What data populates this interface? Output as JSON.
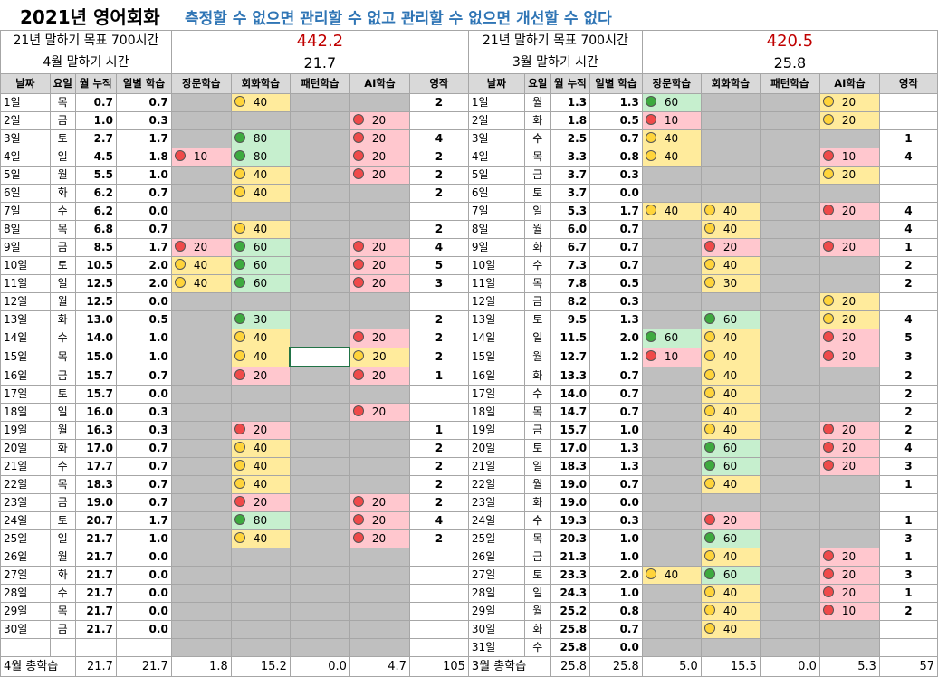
{
  "title": "2021년 영어회화",
  "subtitle": "측정할 수 없으면 관리할 수 없고 관리할 수 없으면 개선할 수 없다",
  "left": {
    "goal_label": "21년 말하기 목표 700시간",
    "goal_value": "442.2",
    "month_label": "4월 말하기 시간",
    "month_value": "21.7",
    "headers": [
      "날짜",
      "요일",
      "월 누적",
      "일별 학습",
      "장문학습",
      "회화학습",
      "패턴학습",
      "AI학습",
      "영작"
    ],
    "rows": [
      [
        "1일",
        "목",
        "0.7",
        "0.7",
        "",
        "y40",
        "",
        "",
        "2"
      ],
      [
        "2일",
        "금",
        "1.0",
        "0.3",
        "",
        "",
        "",
        "r20",
        ""
      ],
      [
        "3일",
        "토",
        "2.7",
        "1.7",
        "",
        "g80",
        "",
        "r20",
        "4"
      ],
      [
        "4일",
        "일",
        "4.5",
        "1.8",
        "r10",
        "g80",
        "",
        "r20",
        "2"
      ],
      [
        "5일",
        "월",
        "5.5",
        "1.0",
        "",
        "y40",
        "",
        "r20",
        "2"
      ],
      [
        "6일",
        "화",
        "6.2",
        "0.7",
        "",
        "y40",
        "",
        "",
        "2"
      ],
      [
        "7일",
        "수",
        "6.2",
        "0.0",
        "",
        "",
        "",
        "",
        ""
      ],
      [
        "8일",
        "목",
        "6.8",
        "0.7",
        "",
        "y40",
        "",
        "",
        "2"
      ],
      [
        "9일",
        "금",
        "8.5",
        "1.7",
        "r20",
        "g60",
        "",
        "r20",
        "4"
      ],
      [
        "10일",
        "토",
        "10.5",
        "2.0",
        "y40",
        "g60",
        "",
        "r20",
        "5"
      ],
      [
        "11일",
        "일",
        "12.5",
        "2.0",
        "y40",
        "g60",
        "",
        "r20",
        "3"
      ],
      [
        "12일",
        "월",
        "12.5",
        "0.0",
        "",
        "",
        "",
        "",
        ""
      ],
      [
        "13일",
        "화",
        "13.0",
        "0.5",
        "",
        "g30",
        "",
        "",
        "2"
      ],
      [
        "14일",
        "수",
        "14.0",
        "1.0",
        "",
        "y40",
        "",
        "r20",
        "2"
      ],
      [
        "15일",
        "목",
        "15.0",
        "1.0",
        "",
        "y40",
        "sel",
        "y20",
        "2"
      ],
      [
        "16일",
        "금",
        "15.7",
        "0.7",
        "",
        "r20",
        "",
        "r20",
        "1"
      ],
      [
        "17일",
        "토",
        "15.7",
        "0.0",
        "",
        "",
        "",
        "",
        ""
      ],
      [
        "18일",
        "일",
        "16.0",
        "0.3",
        "",
        "",
        "",
        "r20",
        ""
      ],
      [
        "19일",
        "월",
        "16.3",
        "0.3",
        "",
        "r20",
        "",
        "",
        "1"
      ],
      [
        "20일",
        "화",
        "17.0",
        "0.7",
        "",
        "y40",
        "",
        "",
        "2"
      ],
      [
        "21일",
        "수",
        "17.7",
        "0.7",
        "",
        "y40",
        "",
        "",
        "2"
      ],
      [
        "22일",
        "목",
        "18.3",
        "0.7",
        "",
        "y40",
        "",
        "",
        "2"
      ],
      [
        "23일",
        "금",
        "19.0",
        "0.7",
        "",
        "r20",
        "",
        "r20",
        "2"
      ],
      [
        "24일",
        "토",
        "20.7",
        "1.7",
        "",
        "g80",
        "",
        "r20",
        "4"
      ],
      [
        "25일",
        "일",
        "21.7",
        "1.0",
        "",
        "y40",
        "",
        "r20",
        "2"
      ],
      [
        "26일",
        "월",
        "21.7",
        "0.0",
        "",
        "",
        "",
        "",
        ""
      ],
      [
        "27일",
        "화",
        "21.7",
        "0.0",
        "",
        "",
        "",
        "",
        ""
      ],
      [
        "28일",
        "수",
        "21.7",
        "0.0",
        "",
        "",
        "",
        "",
        ""
      ],
      [
        "29일",
        "목",
        "21.7",
        "0.0",
        "",
        "",
        "",
        "",
        ""
      ],
      [
        "30일",
        "금",
        "21.7",
        "0.0",
        "",
        "",
        "",
        "",
        ""
      ],
      [
        "",
        "",
        "",
        "",
        "",
        "",
        "",
        "",
        ""
      ]
    ],
    "total": [
      "4월 총학습",
      "21.7",
      "21.7",
      "1.8",
      "15.2",
      "0.0",
      "4.7",
      "105"
    ]
  },
  "right": {
    "goal_label": "21년 말하기 목표 700시간",
    "goal_value": "420.5",
    "month_label": "3월 말하기 시간",
    "month_value": "25.8",
    "headers": [
      "날짜",
      "요일",
      "월 누적",
      "일별 학습",
      "장문학습",
      "회화학습",
      "패턴학습",
      "AI학습",
      "영작"
    ],
    "rows": [
      [
        "1일",
        "월",
        "1.3",
        "1.3",
        "g60",
        "",
        "",
        "y20",
        ""
      ],
      [
        "2일",
        "화",
        "1.8",
        "0.5",
        "r10",
        "",
        "",
        "y20",
        ""
      ],
      [
        "3일",
        "수",
        "2.5",
        "0.7",
        "y40",
        "",
        "",
        "",
        "1"
      ],
      [
        "4일",
        "목",
        "3.3",
        "0.8",
        "y40",
        "",
        "",
        "r10",
        "4"
      ],
      [
        "5일",
        "금",
        "3.7",
        "0.3",
        "",
        "",
        "",
        "y20",
        ""
      ],
      [
        "6일",
        "토",
        "3.7",
        "0.0",
        "",
        "",
        "",
        "",
        ""
      ],
      [
        "7일",
        "일",
        "5.3",
        "1.7",
        "y40",
        "y40",
        "",
        "r20",
        "4"
      ],
      [
        "8일",
        "월",
        "6.0",
        "0.7",
        "",
        "y40",
        "",
        "",
        "4"
      ],
      [
        "9일",
        "화",
        "6.7",
        "0.7",
        "",
        "r20",
        "",
        "r20",
        "1"
      ],
      [
        "10일",
        "수",
        "7.3",
        "0.7",
        "",
        "y40",
        "",
        "",
        "2"
      ],
      [
        "11일",
        "목",
        "7.8",
        "0.5",
        "",
        "y30",
        "",
        "",
        "2"
      ],
      [
        "12일",
        "금",
        "8.2",
        "0.3",
        "",
        "",
        "",
        "y20",
        ""
      ],
      [
        "13일",
        "토",
        "9.5",
        "1.3",
        "",
        "g60",
        "",
        "y20",
        "4"
      ],
      [
        "14일",
        "일",
        "11.5",
        "2.0",
        "g60",
        "y40",
        "",
        "r20",
        "5"
      ],
      [
        "15일",
        "월",
        "12.7",
        "1.2",
        "r10",
        "y40",
        "",
        "r20",
        "3"
      ],
      [
        "16일",
        "화",
        "13.3",
        "0.7",
        "",
        "y40",
        "",
        "",
        "2"
      ],
      [
        "17일",
        "수",
        "14.0",
        "0.7",
        "",
        "y40",
        "",
        "",
        "2"
      ],
      [
        "18일",
        "목",
        "14.7",
        "0.7",
        "",
        "y40",
        "",
        "",
        "2"
      ],
      [
        "19일",
        "금",
        "15.7",
        "1.0",
        "",
        "y40",
        "",
        "r20",
        "2"
      ],
      [
        "20일",
        "토",
        "17.0",
        "1.3",
        "",
        "g60",
        "",
        "r20",
        "4"
      ],
      [
        "21일",
        "일",
        "18.3",
        "1.3",
        "",
        "g60",
        "",
        "r20",
        "3"
      ],
      [
        "22일",
        "월",
        "19.0",
        "0.7",
        "",
        "y40",
        "",
        "",
        "1"
      ],
      [
        "23일",
        "화",
        "19.0",
        "0.0",
        "",
        "",
        "",
        "",
        ""
      ],
      [
        "24일",
        "수",
        "19.3",
        "0.3",
        "",
        "r20",
        "",
        "",
        "1"
      ],
      [
        "25일",
        "목",
        "20.3",
        "1.0",
        "",
        "g60",
        "",
        "",
        "3"
      ],
      [
        "26일",
        "금",
        "21.3",
        "1.0",
        "",
        "y40",
        "",
        "r20",
        "1"
      ],
      [
        "27일",
        "토",
        "23.3",
        "2.0",
        "y40",
        "g60",
        "",
        "r20",
        "3"
      ],
      [
        "28일",
        "일",
        "24.3",
        "1.0",
        "",
        "y40",
        "",
        "r20",
        "1"
      ],
      [
        "29일",
        "월",
        "25.2",
        "0.8",
        "",
        "y40",
        "",
        "r10",
        "2"
      ],
      [
        "30일",
        "화",
        "25.8",
        "0.7",
        "",
        "y40",
        "",
        "",
        ""
      ],
      [
        "31일",
        "수",
        "25.8",
        "0.0",
        "",
        "",
        "",
        "",
        ""
      ]
    ],
    "total": [
      "3월 총학습",
      "25.8",
      "25.8",
      "5.0",
      "15.5",
      "0.0",
      "5.3",
      "57"
    ]
  }
}
